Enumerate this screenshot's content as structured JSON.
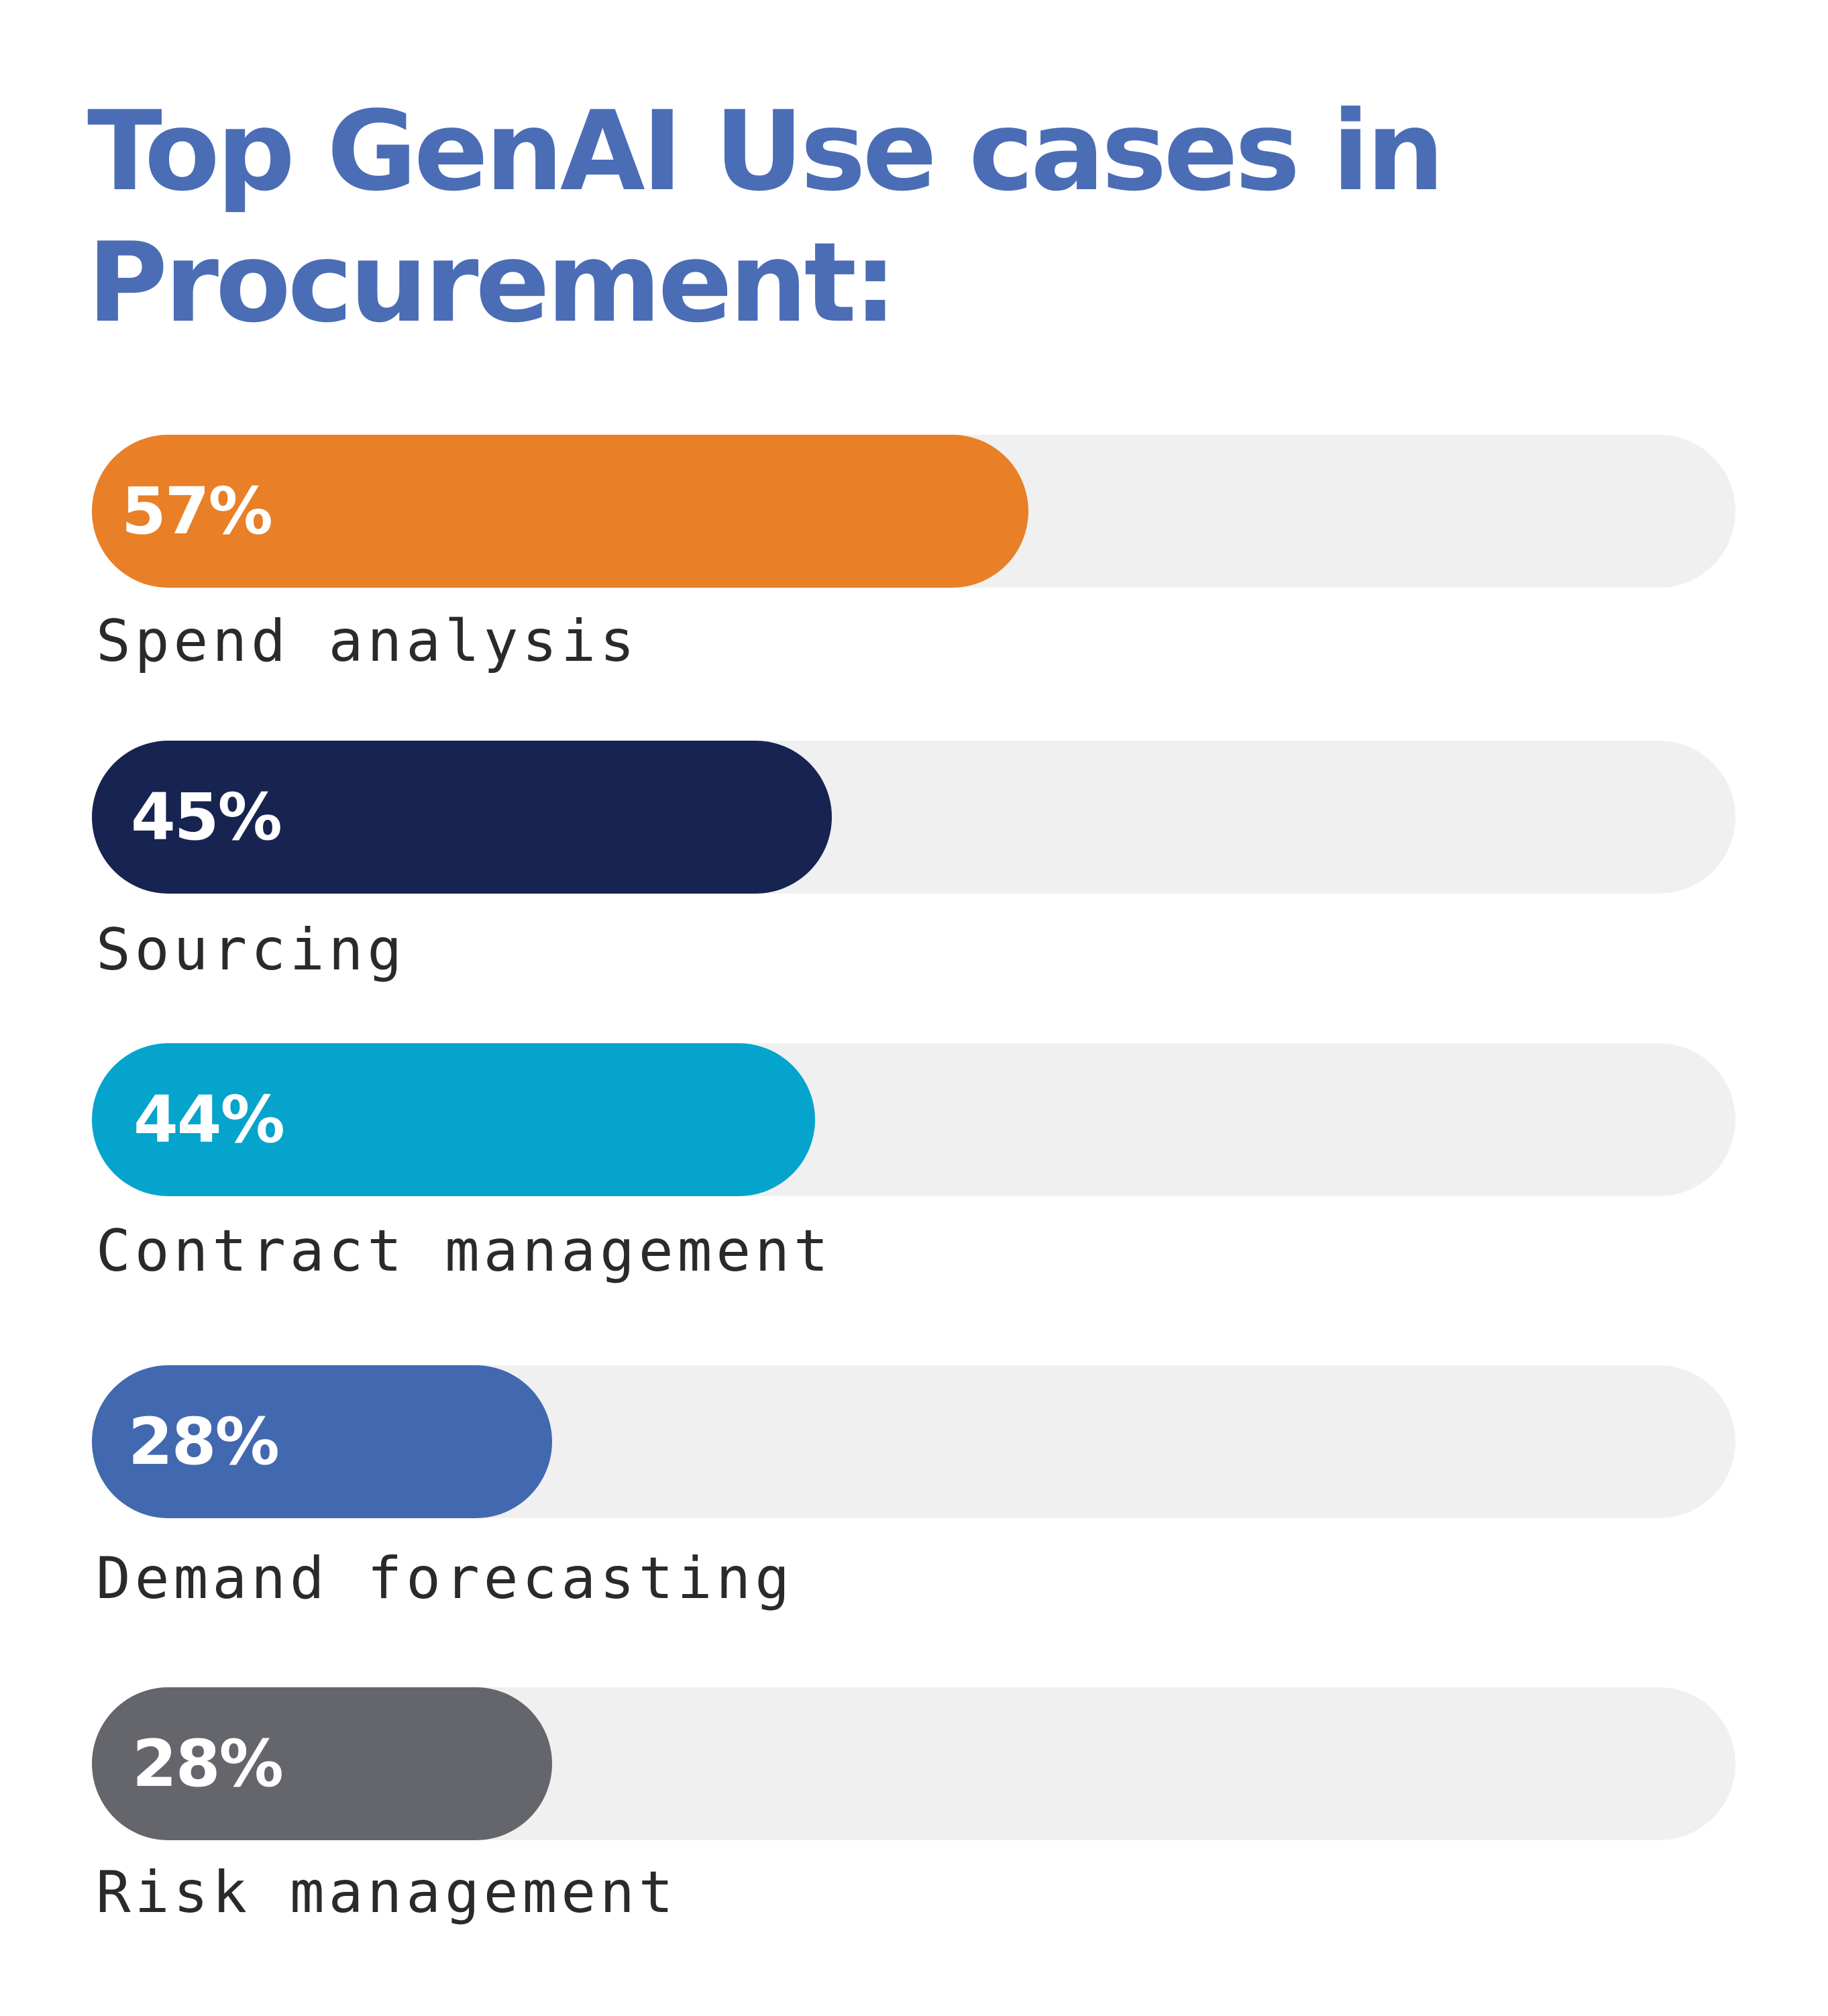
{
  "chart_data": {
    "type": "bar",
    "orientation": "horizontal",
    "title": "Top GenAI Use cases in Procurement:",
    "xlim": [
      0,
      100
    ],
    "categories": [
      "Spend analysis",
      "Sourcing",
      "Contract management",
      "Demand forecasting",
      "Risk management"
    ],
    "values": [
      57,
      45,
      44,
      28,
      28
    ],
    "value_labels": [
      "57%",
      "45%",
      "44%",
      "28%",
      "28%"
    ],
    "colors": [
      "#e97f26",
      "#172350",
      "#05a4cd",
      "#4268b0",
      "#65666b"
    ],
    "track_color": "#f0f0f0",
    "title_color": "#4a6db5",
    "grid": false,
    "legend": "none"
  }
}
